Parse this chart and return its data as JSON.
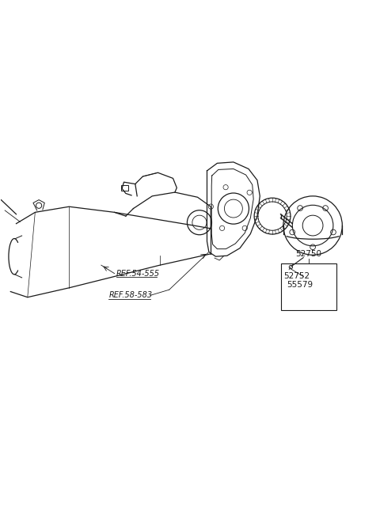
{
  "bg_color": "#ffffff",
  "line_color": "#1a1a1a",
  "fig_width": 4.8,
  "fig_height": 6.56,
  "dpi": 100,
  "labels": {
    "ref54": "REF.54-555",
    "ref58": "REF.58-583",
    "p52750": "52750",
    "p52752": "52752",
    "p55579": "55579"
  }
}
